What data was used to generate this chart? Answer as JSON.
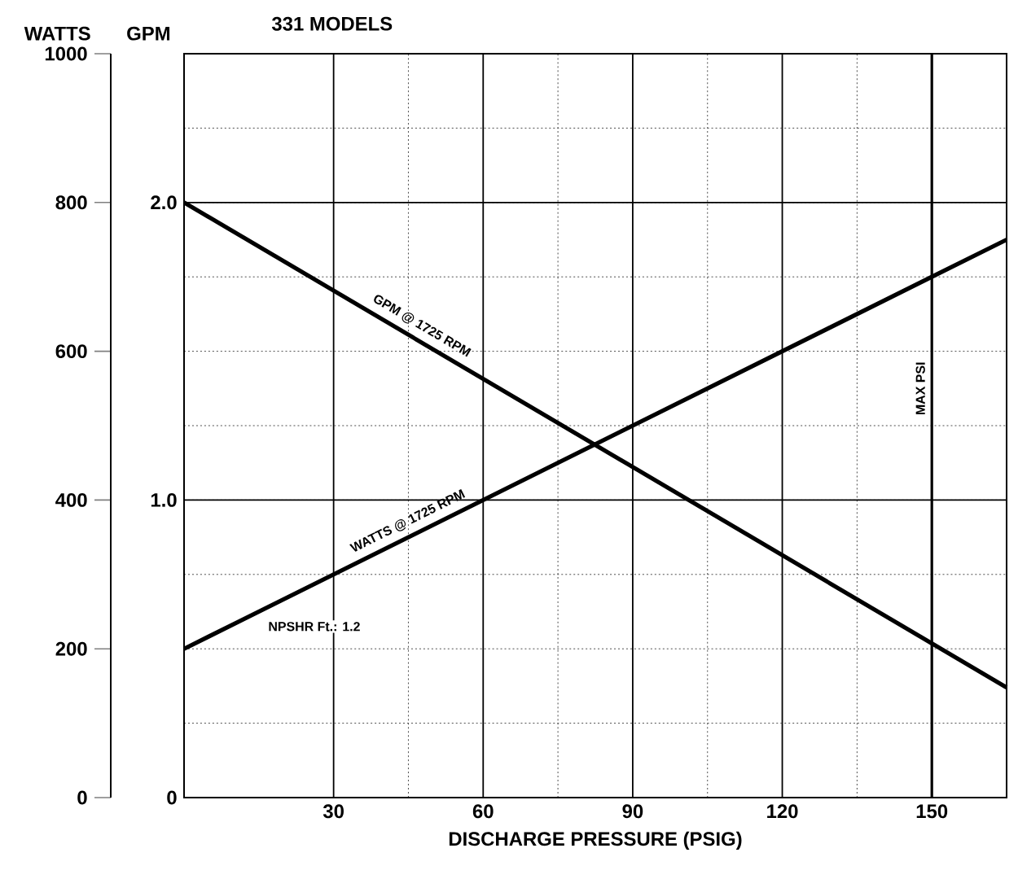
{
  "chart_data": {
    "type": "line",
    "title": "331 MODELS",
    "xlabel": "DISCHARGE PRESSURE (PSIG)",
    "ylabel": "WATTS",
    "y2label": "GPM",
    "xlim": [
      0,
      165
    ],
    "xticks": [
      30,
      60,
      90,
      120,
      150
    ],
    "ylim": [
      0,
      1000
    ],
    "yticks": [
      0,
      200,
      400,
      600,
      800,
      1000
    ],
    "y2lim": [
      0,
      2.5
    ],
    "y2ticks": [
      0,
      {
        "value": 1,
        "label": "1.0"
      },
      {
        "value": 2,
        "label": "2.0"
      }
    ],
    "grid": true,
    "marker": "none",
    "line_style": "solid",
    "series": [
      {
        "name": "GPM @ 1725 RPM",
        "axis": "y2",
        "color": "#000000",
        "x": [
          0,
          165
        ],
        "values": [
          2.0,
          0.37
        ]
      },
      {
        "name": "WATTS @ 1725 RPM",
        "color": "#000000",
        "x": [
          0,
          150,
          165
        ],
        "values": [
          200,
          700,
          750
        ]
      }
    ],
    "ref_lines": [
      {
        "axis": "x",
        "value": 150,
        "label": "MAX PSI"
      }
    ],
    "annotations": [
      "NPSHR Ft.: 1.2"
    ]
  }
}
